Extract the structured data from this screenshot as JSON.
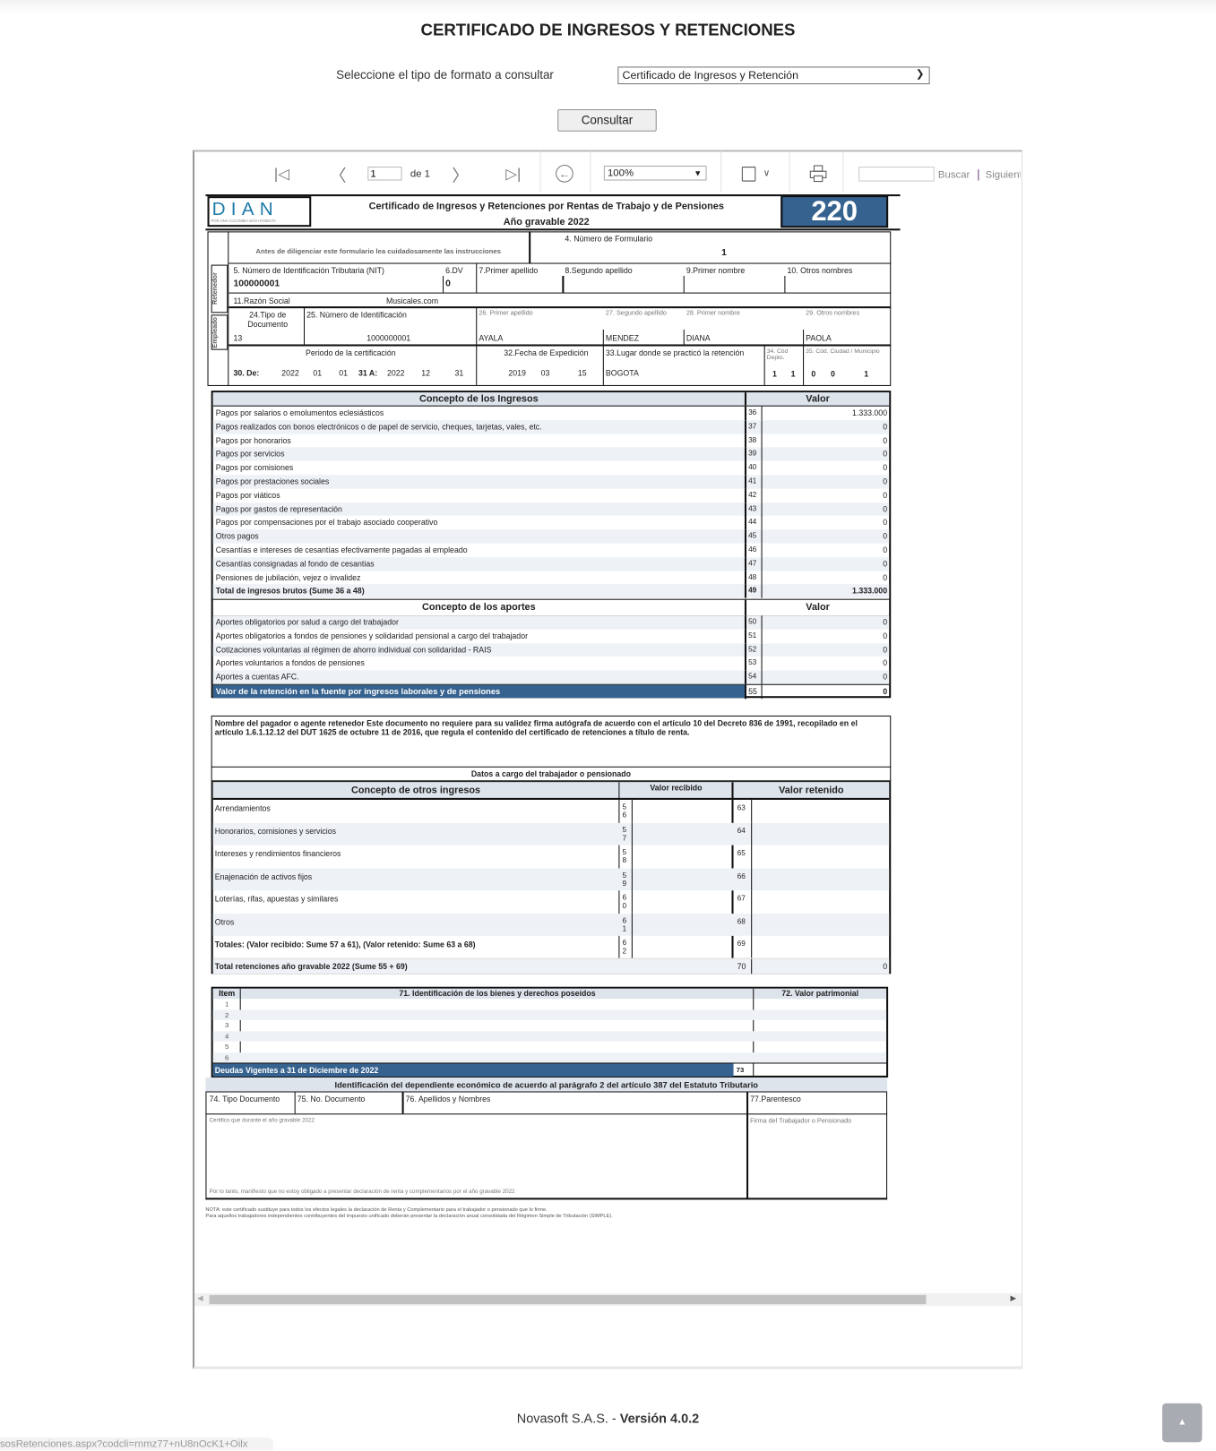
{
  "page": {
    "title": "CERTIFICADO DE INGRESOS Y RETENCIONES",
    "select_label": "Seleccione el tipo de formato a consultar",
    "select_value": "Certificado de Ingresos y Retención",
    "consult_button": "Consultar"
  },
  "toolbar": {
    "page_input": "1",
    "page_of": "de 1",
    "zoom": "100%",
    "search_placeholder": "",
    "search_label": "Buscar",
    "next_label": "Siguiente",
    "icons": [
      "first-page-icon",
      "prev-page-icon",
      "next-page-icon",
      "last-page-icon",
      "back-icon",
      "save-icon",
      "print-icon"
    ]
  },
  "form": {
    "logo_text": "DIAN",
    "logo_tagline": "POR UNA COLOMBIA MÁS HONESTA",
    "title": "Certificado de Ingresos y Retenciones por Rentas de Trabajo y de Pensiones",
    "subtitle": "Año gravable 2022",
    "form_number_badge": "220",
    "instructions": "Antes de diligenciar este formulario lea cuidadosamente las instrucciones",
    "f4_label": "4. Número de Formulario",
    "f4_value": "1",
    "side_retenedor": "Retenedor",
    "side_empleado": "Empleado",
    "f5_label": "5. Número de Identificación Tributaria (NIT)",
    "f5_value": "100000001",
    "f6_label": "6.DV",
    "f6_value": "0",
    "f7_label": "7.Primer  apellido",
    "f8_label": "8.Segundo apellido",
    "f9_label": "9.Primer nombre",
    "f10_label": "10. Otros nombres",
    "f11_label": "11.Razón Social",
    "f11_value": "Musicales.com",
    "f24_label": "24.Tipo de Documento",
    "f24_value": "13",
    "f25_label": "25. Número de Identificación",
    "f25_value": "1000000001",
    "f26_label": "26. Primer apellido",
    "f26_value": "AYALA",
    "f27_label": "27. Segundo apellido",
    "f27_value": "MENDEZ",
    "f28_label": "28. Primer nombre",
    "f28_value": "DIANA",
    "f29_label": "29. Otros nombres",
    "f29_value": "PAOLA",
    "period_label": "Periodo de la certificación",
    "f30_label": "30. De:",
    "f30_year": "2022",
    "f30_month": "01",
    "f30_day": "01",
    "f31_label": "31 A:",
    "f31_year": "2022",
    "f31_month": "12",
    "f31_day": "31",
    "f32_label": "32.Fecha de Expedición",
    "f32_year": "2019",
    "f32_month": "03",
    "f32_day": "15",
    "f33_label": "33.Lugar donde se practicó la retención",
    "f33_value": "BOGOTA",
    "f34_label": "34. Cód Depto.",
    "f34_d1": "1",
    "f34_d2": "1",
    "f35_label": "35. Cód. Ciudad / Municipio",
    "f35_d1": "0",
    "f35_d2": "0",
    "f35_d3": "1"
  },
  "ingresos": {
    "header": "Concepto de los Ingresos",
    "value_header": "Valor",
    "rows": [
      {
        "label": "Pagos por salarios o emolumentos eclesiásticos",
        "num": "36",
        "value": "1.333.000"
      },
      {
        "label": "Pagos realizados con bonos electrónicos o de papel de servicio, cheques, tarjetas, vales, etc.",
        "num": "37",
        "value": "0"
      },
      {
        "label": "Pagos por honorarios",
        "num": "38",
        "value": "0"
      },
      {
        "label": "Pagos por servicios",
        "num": "39",
        "value": "0"
      },
      {
        "label": "Pagos por comisiones",
        "num": "40",
        "value": "0"
      },
      {
        "label": "Pagos por prestaciones sociales",
        "num": "41",
        "value": "0"
      },
      {
        "label": "Pagos por viáticos",
        "num": "42",
        "value": "0"
      },
      {
        "label": "Pagos por gastos de representación",
        "num": "43",
        "value": "0"
      },
      {
        "label": "Pagos por compensaciones por el trabajo asociado cooperativo",
        "num": "44",
        "value": "0"
      },
      {
        "label": "Otros pagos",
        "num": "45",
        "value": "0"
      },
      {
        "label": "Cesantías e intereses de cesantías efectivamente pagadas al empleado",
        "num": "46",
        "value": "0"
      },
      {
        "label": "Cesantías consignadas al fondo de cesantias",
        "num": "47",
        "value": "0"
      },
      {
        "label": "Pensiones de jubilación, vejez o invalidez",
        "num": "48",
        "value": "0"
      },
      {
        "label": "Total de ingresos brutos (Sume 36 a 48)",
        "num": "49",
        "value": "1.333.000",
        "bold": true
      }
    ]
  },
  "aportes": {
    "header": "Concepto de los aportes",
    "value_header": "Valor",
    "rows": [
      {
        "label": "Aportes obligatorios por salud a cargo del trabajador",
        "num": "50",
        "value": "0"
      },
      {
        "label": "Aportes obligatorios a fondos de pensiones y solidaridad pensional a cargo del trabajador",
        "num": "51",
        "value": "0"
      },
      {
        "label": "Cotizaciones voluntarias al régimen de ahorro individual con solidaridad - RAIS",
        "num": "52",
        "value": "0"
      },
      {
        "label": "Aportes voluntarios a fondos de pensiones",
        "num": "53",
        "value": "0"
      },
      {
        "label": "Aportes a cuentas AFC.",
        "num": "54",
        "value": "0"
      }
    ],
    "retencion": {
      "label": "Valor de la retención en la fuente por ingresos laborales y de pensiones",
      "num": "55",
      "value": "0"
    }
  },
  "pagador_text": "Nombre del pagador o agente retenedor Este documento no requiere para su validez firma autógrafa de acuerdo con el artículo 10 del Decreto 836 de 1991, recopilado en el artículo 1.6.1.12.12 del DUT 1625 de octubre 11 de 2016, que regula el contenido del certificado de retenciones a título de renta.",
  "otros": {
    "section_title": "Datos a cargo del trabajador o pensionado",
    "header": "Concepto de otros ingresos",
    "recibido_header": "Valor recibido",
    "retenido_header": "Valor retenido",
    "rows": [
      {
        "label": "Arrendamientos",
        "num_r": "56",
        "num_t": "63"
      },
      {
        "label": "Honorarios, comisiones y servicios",
        "num_r": "57",
        "num_t": "64"
      },
      {
        "label": "Intereses y rendimientos financieros",
        "num_r": "58",
        "num_t": "65"
      },
      {
        "label": "Enajenación de activos fijos",
        "num_r": "59",
        "num_t": "66"
      },
      {
        "label": "Loterías, rifas, apuestas y similares",
        "num_r": "60",
        "num_t": "67"
      },
      {
        "label": "Otros",
        "num_r": "61",
        "num_t": "68"
      },
      {
        "label": "Totales: (Valor recibido: Sume 57 a 61), (Valor retenido: Sume 63 a 68)",
        "num_r": "62",
        "num_t": "69"
      }
    ],
    "total": {
      "label": "Total retenciones año gravable 2022 (Sume 55 + 69)",
      "num": "70",
      "value": "0"
    }
  },
  "bienes": {
    "item_header": "Item",
    "desc_header": "71. Identificación de los bienes y derechos poseídos",
    "value_header": "72. Valor patrimonial",
    "items": [
      "1",
      "2",
      "3",
      "4",
      "5",
      "6"
    ],
    "deudas_label": "Deudas Vigentes a 31 de Diciembre de 2022",
    "deudas_num": "73"
  },
  "dependiente": {
    "title": "Identificación del dependiente económico de acuerdo al parágrafo 2 del artículo 387 del Estatuto Tributario",
    "f74": "74. Tipo Documento",
    "f75": "75. No. Documento",
    "f76": "76. Apellidos y Nombres",
    "f77": "77.Parentesco"
  },
  "certifico": "Certifico que durante el año gravable 2022",
  "firma": "Firma del Trabajador o Pensionado",
  "manifiesto": "Por lo tanto, manifiesto que no estoy obligado a presentar declaración de renta y complementarios por el año gravable 2022",
  "nota1": "NOTA: este certificado sustituye para todos los efectos legales la declaración de Renta y Complementario para el trabajador o pensionado que lo firme.",
  "nota2": "Para aquellos trabajadores independientes contribuyentes del impuesto unificado deberán presentar la declaración anual consolidada del Régimen Simple de Tributación (SIMPLE).",
  "footer": {
    "company": "Novasoft S.A.S. - ",
    "version": "Versión 4.0.2"
  },
  "status_url": "sosRetenciones.aspx?codcli=rnmz77+nU8nOcK1+Oilx",
  "colors": {
    "dark_blue": "#36628f",
    "row_alt": "#eef2f6",
    "header_bg": "#dde4ec"
  }
}
